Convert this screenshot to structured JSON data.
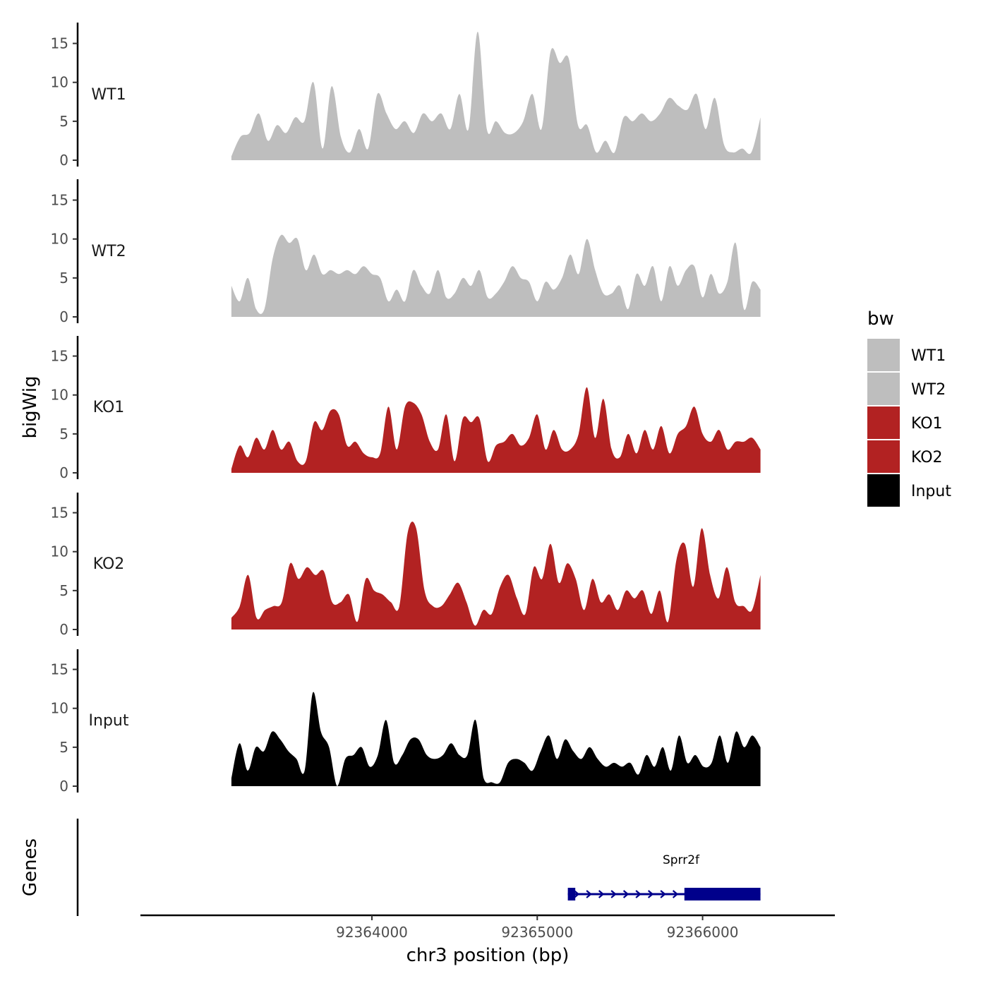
{
  "chart_data": {
    "type": "area",
    "chromosome": "chr3",
    "xlabel": "chr3 position (bp)",
    "ylabel_tracks": "bigWig",
    "ylabel_genes": "Genes",
    "xlim": [
      92362600,
      92366800
    ],
    "x_ticks": [
      92364000,
      92365000,
      92366000
    ],
    "x_tick_labels": [
      "92364000",
      "92365000",
      "92366000"
    ],
    "ylim": [
      0,
      17
    ],
    "y_ticks": [
      0,
      5,
      10,
      15
    ],
    "y_tick_labels": [
      "0",
      "5",
      "10",
      "15"
    ],
    "data_x_range": [
      92363150,
      92366350
    ],
    "legend": {
      "title": "bw",
      "items": [
        {
          "label": "WT1",
          "color": "#bebebe"
        },
        {
          "label": "WT2",
          "color": "#bebebe"
        },
        {
          "label": "KO1",
          "color": "#b22222"
        },
        {
          "label": "KO2",
          "color": "#b22222"
        },
        {
          "label": "Input",
          "color": "#000000"
        }
      ]
    },
    "series": [
      {
        "name": "WT1",
        "color": "#bebebe",
        "values": [
          0.5,
          3,
          3.5,
          6,
          2.5,
          4.5,
          3.5,
          5.5,
          5,
          10,
          1.5,
          9.5,
          3,
          1,
          4,
          1.5,
          8.5,
          6,
          4,
          5,
          3.5,
          6,
          5,
          6,
          4,
          8.5,
          4,
          16.5,
          4,
          5,
          3.5,
          3.5,
          5,
          8.5,
          4,
          14,
          12.5,
          13,
          4.5,
          4.5,
          1,
          2.5,
          1,
          5.5,
          5,
          6,
          5,
          6,
          8,
          7,
          6.5,
          8.5,
          4,
          8,
          2,
          1,
          1.5,
          1,
          5.5
        ]
      },
      {
        "name": "WT2",
        "color": "#bebebe",
        "values": [
          4,
          2,
          5,
          1,
          1,
          7.5,
          10.5,
          9.5,
          10,
          6,
          8,
          5.5,
          6,
          5.5,
          6,
          5.5,
          6.5,
          5.5,
          5,
          2,
          3.5,
          2,
          6,
          4,
          3,
          6,
          2.5,
          3,
          5,
          4,
          6,
          2.5,
          3,
          4.5,
          6.5,
          5,
          4.5,
          2,
          4.5,
          3.5,
          5,
          8,
          5.5,
          10,
          6,
          3,
          3,
          4,
          1,
          5.5,
          4,
          6.5,
          2,
          6.5,
          4,
          6,
          6.5,
          2.5,
          5.5,
          3,
          4.5,
          9.5,
          1,
          4.5,
          3.5
        ]
      },
      {
        "name": "KO1",
        "color": "#b22222",
        "values": [
          0.5,
          3.5,
          2,
          4.5,
          3,
          5.5,
          3,
          4,
          1.5,
          1.5,
          6.5,
          5.5,
          8,
          7.5,
          3.5,
          4,
          2.5,
          2,
          2.5,
          8.5,
          3,
          8.5,
          9,
          7.5,
          4,
          3,
          7.5,
          1.5,
          7,
          6.5,
          7,
          1.5,
          3.5,
          4,
          5,
          3.5,
          4.5,
          7.5,
          3,
          5.5,
          3,
          3,
          5,
          11,
          4.5,
          9.5,
          3,
          2,
          5,
          2.5,
          5.5,
          3,
          6,
          2.5,
          5,
          6,
          8.5,
          5,
          4,
          5.5,
          3,
          4,
          4,
          4.5,
          3
        ]
      },
      {
        "name": "KO2",
        "color": "#b22222",
        "values": [
          1.5,
          3,
          7,
          1.5,
          2.5,
          3,
          3.5,
          8.5,
          6.5,
          8,
          7,
          7.5,
          3.5,
          3.5,
          4.5,
          1,
          6.5,
          5,
          4.5,
          3.5,
          3,
          12.5,
          13,
          5,
          3,
          3,
          4.5,
          6,
          3.5,
          0.5,
          2.5,
          2,
          5.5,
          7,
          4,
          2,
          8,
          6.5,
          11,
          6,
          8.5,
          6.5,
          2.5,
          6.5,
          3.5,
          4.5,
          2.5,
          5,
          4,
          5,
          2,
          5,
          1,
          9,
          11,
          5.5,
          13,
          7,
          4,
          8,
          3.5,
          3,
          2.5,
          7
        ]
      },
      {
        "name": "Input",
        "color": "#000000",
        "values": [
          1,
          5.5,
          2,
          5,
          4.5,
          7,
          6,
          4.5,
          3.5,
          2,
          12,
          7,
          5,
          0,
          3.5,
          4,
          5,
          2.5,
          4,
          8.5,
          3,
          4,
          6,
          6,
          4,
          3.5,
          4,
          5.5,
          4,
          4,
          8.5,
          1,
          0.5,
          0.5,
          3,
          3.5,
          3,
          2,
          4.5,
          6.5,
          3.5,
          6,
          4.5,
          3.5,
          5,
          3.5,
          2.5,
          3,
          2.5,
          3,
          1.5,
          4,
          2.5,
          5,
          2,
          6.5,
          3,
          4,
          2.5,
          3,
          6.5,
          3,
          7,
          5,
          6.5,
          5
        ]
      }
    ],
    "genes": [
      {
        "name": "Sprr2f",
        "strand": "+",
        "exons": [
          [
            92365185,
            92365230
          ],
          [
            92365890,
            92366350
          ]
        ],
        "start": 92365185,
        "end": 92366350
      }
    ]
  }
}
